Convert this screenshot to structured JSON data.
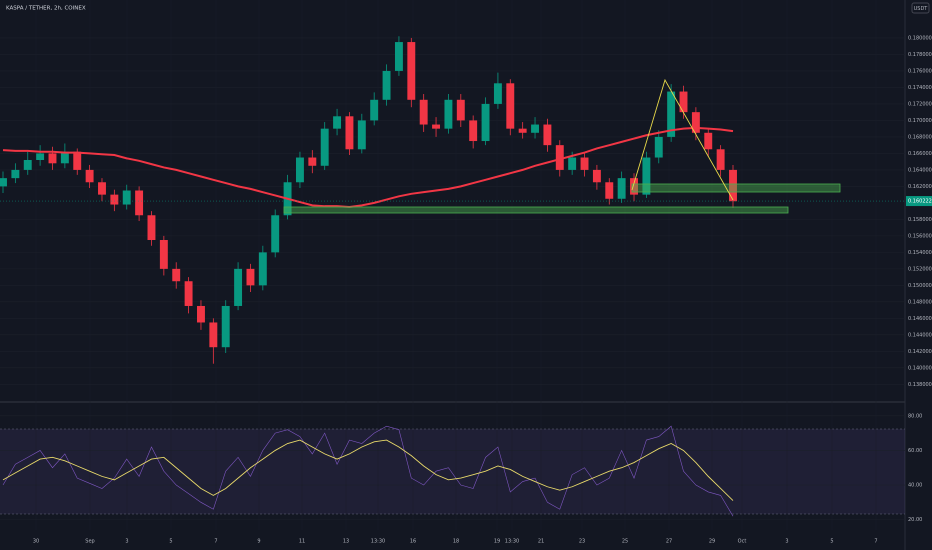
{
  "chart_data": {
    "type": "candlestick",
    "title": "KASPA / TETHER, 2h, COINEX",
    "currency": "USDT",
    "last_price": 0.160222,
    "up_color": "#089981",
    "down_color": "#f23645",
    "ylim": [
      0.1361,
      0.1846
    ],
    "yticks": [
      {
        "value": 0.138,
        "label": "0.138000"
      },
      {
        "value": 0.14,
        "label": "0.140000"
      },
      {
        "value": 0.142,
        "label": "0.142000"
      },
      {
        "value": 0.144,
        "label": "0.144000"
      },
      {
        "value": 0.146,
        "label": "0.146000"
      },
      {
        "value": 0.148,
        "label": "0.148000"
      },
      {
        "value": 0.15,
        "label": "0.150000"
      },
      {
        "value": 0.152,
        "label": "0.152000"
      },
      {
        "value": 0.154,
        "label": "0.154000"
      },
      {
        "value": 0.156,
        "label": "0.156000"
      },
      {
        "value": 0.158,
        "label": "0.158000"
      },
      {
        "value": 0.162,
        "label": "0.162000"
      },
      {
        "value": 0.164,
        "label": "0.164000"
      },
      {
        "value": 0.166,
        "label": "0.166000"
      },
      {
        "value": 0.168,
        "label": "0.168000"
      },
      {
        "value": 0.17,
        "label": "0.170000"
      },
      {
        "value": 0.172,
        "label": "0.172000"
      },
      {
        "value": 0.174,
        "label": "0.174000"
      },
      {
        "value": 0.176,
        "label": "0.176000"
      },
      {
        "value": 0.178,
        "label": "0.178000"
      },
      {
        "value": 0.18,
        "label": "0.180000"
      }
    ],
    "time_labels": [
      "30",
      "Sep",
      "3",
      "5",
      "7",
      "9",
      "11",
      "13",
      "13:30",
      "16",
      "18",
      "19",
      "13:30",
      "21",
      "23",
      "25",
      "27",
      "29",
      "Oct",
      "3",
      "5",
      "7"
    ],
    "open": [
      0.162,
      0.163,
      0.164,
      0.1652,
      0.166,
      0.1648,
      0.1662,
      0.164,
      0.1625,
      0.161,
      0.1598,
      0.1615,
      0.1585,
      0.1555,
      0.152,
      0.1505,
      0.1475,
      0.1455,
      0.1425,
      0.1475,
      0.152,
      0.15,
      0.154,
      0.1585,
      0.1625,
      0.1655,
      0.1645,
      0.169,
      0.1705,
      0.1665,
      0.17,
      0.1725,
      0.176,
      0.1795,
      0.1725,
      0.1695,
      0.169,
      0.1725,
      0.17,
      0.1675,
      0.172,
      0.1745,
      0.169,
      0.1685,
      0.1695,
      0.167,
      0.164,
      0.1655,
      0.164,
      0.1625,
      0.1605,
      0.163,
      0.161,
      0.1655,
      0.168,
      0.1735,
      0.171,
      0.1685,
      0.1665,
      0.164
    ],
    "high": [
      0.1638,
      0.1648,
      0.1662,
      0.167,
      0.1668,
      0.1672,
      0.1666,
      0.1646,
      0.163,
      0.1616,
      0.1622,
      0.162,
      0.159,
      0.156,
      0.1528,
      0.151,
      0.1482,
      0.146,
      0.1482,
      0.1528,
      0.1526,
      0.1548,
      0.1592,
      0.1634,
      0.1662,
      0.1664,
      0.1698,
      0.1714,
      0.171,
      0.1708,
      0.1734,
      0.1768,
      0.1802,
      0.18,
      0.1732,
      0.1704,
      0.1732,
      0.1732,
      0.1706,
      0.1728,
      0.1758,
      0.175,
      0.1698,
      0.1704,
      0.1702,
      0.1676,
      0.1662,
      0.166,
      0.1646,
      0.163,
      0.1638,
      0.1636,
      0.1662,
      0.1688,
      0.1744,
      0.1742,
      0.1716,
      0.169,
      0.167,
      0.1646
    ],
    "low": [
      0.1612,
      0.1624,
      0.1634,
      0.1645,
      0.164,
      0.1642,
      0.1634,
      0.1618,
      0.1602,
      0.159,
      0.1592,
      0.1578,
      0.1548,
      0.1512,
      0.1496,
      0.1466,
      0.1446,
      0.1405,
      0.1418,
      0.147,
      0.1492,
      0.1494,
      0.1534,
      0.158,
      0.1618,
      0.1636,
      0.164,
      0.1682,
      0.1658,
      0.166,
      0.1694,
      0.1718,
      0.1754,
      0.1716,
      0.1686,
      0.168,
      0.1684,
      0.1692,
      0.1666,
      0.167,
      0.1714,
      0.1682,
      0.1678,
      0.1678,
      0.1662,
      0.1632,
      0.1634,
      0.1632,
      0.1616,
      0.1598,
      0.16,
      0.1602,
      0.1606,
      0.1648,
      0.1674,
      0.1702,
      0.1676,
      0.1656,
      0.1632,
      0.1594
    ],
    "close": [
      0.163,
      0.164,
      0.1652,
      0.166,
      0.1648,
      0.1662,
      0.164,
      0.1625,
      0.161,
      0.1598,
      0.1615,
      0.1585,
      0.1555,
      0.152,
      0.1505,
      0.1475,
      0.1455,
      0.1425,
      0.1475,
      0.152,
      0.15,
      0.154,
      0.1585,
      0.1625,
      0.1655,
      0.1645,
      0.169,
      0.1705,
      0.1665,
      0.17,
      0.1725,
      0.176,
      0.1795,
      0.1725,
      0.1695,
      0.169,
      0.1725,
      0.17,
      0.1675,
      0.172,
      0.1745,
      0.169,
      0.1685,
      0.1695,
      0.167,
      0.164,
      0.1655,
      0.164,
      0.1625,
      0.1605,
      0.163,
      0.161,
      0.1655,
      0.168,
      0.1735,
      0.171,
      0.1685,
      0.1665,
      0.164,
      0.1602
    ],
    "ma": {
      "color": "#f23645",
      "values": [
        0.1664,
        0.1663,
        0.1663,
        0.1662,
        0.1662,
        0.1661,
        0.1661,
        0.166,
        0.1659,
        0.1658,
        0.1654,
        0.1651,
        0.1647,
        0.1643,
        0.164,
        0.1636,
        0.1632,
        0.1628,
        0.1624,
        0.162,
        0.1617,
        0.1613,
        0.1609,
        0.1605,
        0.1601,
        0.1597,
        0.1596,
        0.1596,
        0.1595,
        0.1597,
        0.16,
        0.1604,
        0.1608,
        0.1611,
        0.1613,
        0.1615,
        0.1617,
        0.162,
        0.1624,
        0.1628,
        0.1632,
        0.1636,
        0.164,
        0.1645,
        0.1649,
        0.1653,
        0.1657,
        0.1661,
        0.1666,
        0.167,
        0.1674,
        0.1678,
        0.1682,
        0.1685,
        0.1688,
        0.169,
        0.1691,
        0.169,
        0.1689,
        0.1687
      ]
    },
    "rsi": {
      "ylim": [
        14,
        88
      ],
      "yticks": [
        {
          "value": 80,
          "label": "80.00"
        },
        {
          "value": 60,
          "label": "60.00"
        },
        {
          "value": 40,
          "label": "40.00"
        },
        {
          "value": 20,
          "label": "20.00"
        }
      ],
      "series": [
        {
          "color": "#7e57c2",
          "values": [
            40,
            52,
            56,
            60,
            50,
            58,
            44,
            41,
            38,
            44,
            55,
            45,
            62,
            48,
            40,
            35,
            30,
            26,
            48,
            56,
            45,
            60,
            70,
            72,
            68,
            58,
            70,
            52,
            66,
            64,
            70,
            74,
            72,
            44,
            40,
            48,
            50,
            40,
            38,
            56,
            62,
            36,
            42,
            44,
            30,
            26,
            46,
            50,
            40,
            44,
            60,
            44,
            66,
            68,
            74,
            48,
            40,
            36,
            34,
            22
          ]
        },
        {
          "color": "#e8d96a",
          "values": [
            43,
            47,
            51,
            55,
            56,
            54,
            51,
            48,
            45,
            43,
            47,
            51,
            55,
            56,
            50,
            44,
            38,
            34,
            38,
            44,
            50,
            55,
            60,
            64,
            66,
            62,
            58,
            55,
            58,
            62,
            65,
            66,
            62,
            57,
            51,
            46,
            43,
            44,
            46,
            48,
            51,
            49,
            45,
            42,
            39,
            37,
            39,
            42,
            45,
            48,
            50,
            53,
            57,
            61,
            64,
            60,
            53,
            45,
            38,
            31
          ]
        }
      ]
    }
  }
}
